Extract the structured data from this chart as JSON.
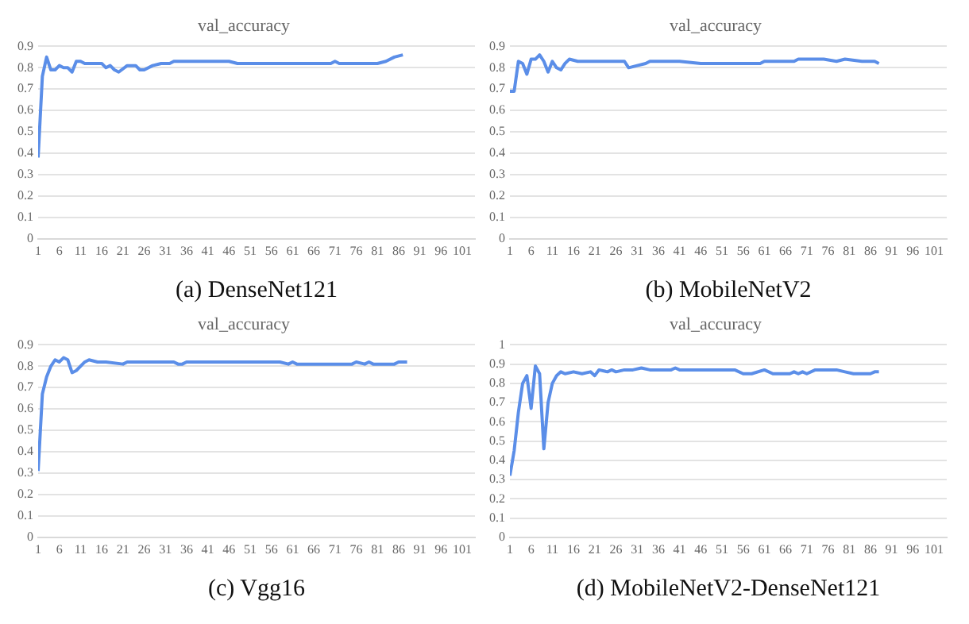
{
  "chart_data": [
    {
      "type": "line",
      "title": "val_accuracy",
      "xlabel": "(a) DenseNet121",
      "xlim": [
        1,
        104
      ],
      "xticks": [
        1,
        6,
        11,
        16,
        21,
        26,
        31,
        36,
        41,
        46,
        51,
        56,
        61,
        66,
        71,
        76,
        81,
        86,
        91,
        96,
        101
      ],
      "ylim": [
        0,
        0.9
      ],
      "yticks": [
        0,
        0.1,
        0.2,
        0.3,
        0.4,
        0.5,
        0.6,
        0.7,
        0.8,
        0.9
      ],
      "grid": "y",
      "marker": "none",
      "series": [
        {
          "color": "#5b8ee8",
          "x": [
            1,
            2,
            3,
            4,
            5,
            6,
            7,
            8,
            9,
            10,
            11,
            12,
            13,
            14,
            16,
            17,
            18,
            19,
            20,
            22,
            24,
            25,
            26,
            28,
            30,
            32,
            33,
            36,
            38,
            40,
            42,
            46,
            48,
            70,
            71,
            72,
            81,
            83,
            85,
            87
          ],
          "values": [
            0.38,
            0.76,
            0.85,
            0.79,
            0.79,
            0.81,
            0.8,
            0.8,
            0.78,
            0.83,
            0.83,
            0.82,
            0.82,
            0.82,
            0.82,
            0.8,
            0.81,
            0.79,
            0.78,
            0.81,
            0.81,
            0.79,
            0.79,
            0.81,
            0.82,
            0.82,
            0.83,
            0.83,
            0.83,
            0.83,
            0.83,
            0.83,
            0.82,
            0.82,
            0.83,
            0.82,
            0.82,
            0.83,
            0.85,
            0.86
          ]
        }
      ]
    },
    {
      "type": "line",
      "title": "val_accuracy",
      "xlabel": "(b) MobileNetV2",
      "xlim": [
        1,
        104
      ],
      "xticks": [
        1,
        6,
        11,
        16,
        21,
        26,
        31,
        36,
        41,
        46,
        51,
        56,
        61,
        66,
        71,
        76,
        81,
        86,
        91,
        96,
        101
      ],
      "ylim": [
        0,
        0.9
      ],
      "yticks": [
        0,
        0.1,
        0.2,
        0.3,
        0.4,
        0.5,
        0.6,
        0.7,
        0.8,
        0.9
      ],
      "grid": "y",
      "marker": "none",
      "series": [
        {
          "color": "#5b8ee8",
          "x": [
            1,
            2,
            3,
            4,
            5,
            6,
            7,
            8,
            9,
            10,
            11,
            12,
            13,
            14,
            15,
            17,
            20,
            24,
            26,
            28,
            29,
            31,
            33,
            34,
            38,
            41,
            46,
            50,
            55,
            60,
            61,
            68,
            69,
            75,
            78,
            80,
            84,
            87,
            88
          ],
          "values": [
            0.69,
            0.69,
            0.83,
            0.82,
            0.77,
            0.84,
            0.84,
            0.86,
            0.83,
            0.78,
            0.83,
            0.8,
            0.79,
            0.82,
            0.84,
            0.83,
            0.83,
            0.83,
            0.83,
            0.83,
            0.8,
            0.81,
            0.82,
            0.83,
            0.83,
            0.83,
            0.82,
            0.82,
            0.82,
            0.82,
            0.83,
            0.83,
            0.84,
            0.84,
            0.83,
            0.84,
            0.83,
            0.83,
            0.82
          ]
        }
      ]
    },
    {
      "type": "line",
      "title": "val_accuracy",
      "xlabel": "(c) Vgg16",
      "xlim": [
        1,
        104
      ],
      "xticks": [
        1,
        6,
        11,
        16,
        21,
        26,
        31,
        36,
        41,
        46,
        51,
        56,
        61,
        66,
        71,
        76,
        81,
        86,
        91,
        96,
        101
      ],
      "ylim": [
        0,
        0.9
      ],
      "yticks": [
        0,
        0.1,
        0.2,
        0.3,
        0.4,
        0.5,
        0.6,
        0.7,
        0.8,
        0.9
      ],
      "grid": "y",
      "marker": "none",
      "series": [
        {
          "color": "#5b8ee8",
          "x": [
            1,
            2,
            3,
            4,
            5,
            6,
            7,
            8,
            9,
            10,
            12,
            13,
            15,
            17,
            21,
            22,
            33,
            34,
            35,
            36,
            58,
            60,
            61,
            62,
            75,
            76,
            78,
            79,
            80,
            85,
            86,
            88
          ],
          "values": [
            0.31,
            0.67,
            0.75,
            0.8,
            0.83,
            0.82,
            0.84,
            0.83,
            0.77,
            0.78,
            0.82,
            0.83,
            0.82,
            0.82,
            0.81,
            0.82,
            0.82,
            0.81,
            0.81,
            0.82,
            0.82,
            0.81,
            0.82,
            0.81,
            0.81,
            0.82,
            0.81,
            0.82,
            0.81,
            0.81,
            0.82,
            0.82
          ]
        }
      ]
    },
    {
      "type": "line",
      "title": "val_accuracy",
      "xlabel": "(d) MobileNetV2-DenseNet121",
      "xlim": [
        1,
        104
      ],
      "xticks": [
        1,
        6,
        11,
        16,
        21,
        26,
        31,
        36,
        41,
        46,
        51,
        56,
        61,
        66,
        71,
        76,
        81,
        86,
        91,
        96,
        101
      ],
      "ylim": [
        0,
        1
      ],
      "yticks": [
        0,
        0.1,
        0.2,
        0.3,
        0.4,
        0.5,
        0.6,
        0.7,
        0.8,
        0.9,
        1
      ],
      "grid": "y",
      "marker": "none",
      "series": [
        {
          "color": "#5b8ee8",
          "x": [
            1,
            2,
            3,
            4,
            5,
            6,
            7,
            8,
            9,
            10,
            11,
            12,
            13,
            14,
            16,
            18,
            20,
            21,
            22,
            24,
            25,
            26,
            28,
            30,
            32,
            34,
            39,
            40,
            41,
            54,
            56,
            58,
            61,
            63,
            67,
            68,
            69,
            70,
            71,
            73,
            78,
            80,
            82,
            86,
            87,
            88
          ],
          "values": [
            0.32,
            0.45,
            0.65,
            0.8,
            0.84,
            0.67,
            0.89,
            0.85,
            0.46,
            0.7,
            0.8,
            0.84,
            0.86,
            0.85,
            0.86,
            0.85,
            0.86,
            0.84,
            0.87,
            0.86,
            0.87,
            0.86,
            0.87,
            0.87,
            0.88,
            0.87,
            0.87,
            0.88,
            0.87,
            0.87,
            0.85,
            0.85,
            0.87,
            0.85,
            0.85,
            0.86,
            0.85,
            0.86,
            0.85,
            0.87,
            0.87,
            0.86,
            0.85,
            0.85,
            0.86,
            0.86
          ]
        }
      ]
    }
  ]
}
